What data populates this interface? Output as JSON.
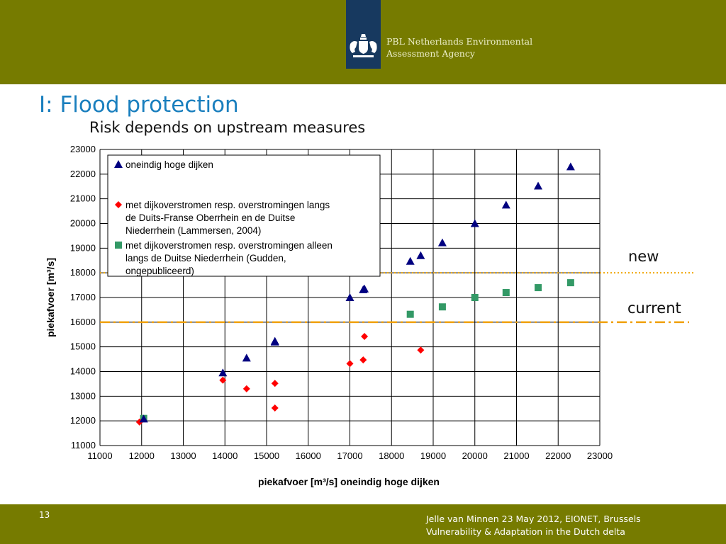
{
  "header": {
    "org_line1": "PBL Netherlands Environmental",
    "org_line2": "Assessment Agency",
    "logo": "dutch-royal-coat-of-arms"
  },
  "slide": {
    "title": "I: Flood protection",
    "subtitle": "Risk depends on upstream measures"
  },
  "footer": {
    "page_number": "13",
    "line1": "Jelle van Minnen 23 May 2012, EIONET, Brussels",
    "line2": "Vulnerability & Adaptation in the Dutch delta"
  },
  "annotations": {
    "new_label": "new",
    "current_label": "current"
  },
  "colors": {
    "band": "#767b00",
    "title": "#1a7fbe",
    "triangle": "#000080",
    "diamond": "#ff0000",
    "square": "#339966",
    "new_line": "#f0a500",
    "current_line": "#f0a000"
  },
  "chart_data": {
    "type": "scatter",
    "xlabel": "piekafvoer [m³/s] oneindig hoge dijken",
    "ylabel": "piekafvoer [m³/s]",
    "xlim": [
      11000,
      23000
    ],
    "ylim": [
      11000,
      23000
    ],
    "xticks": [
      11000,
      12000,
      13000,
      14000,
      15000,
      16000,
      17000,
      18000,
      19000,
      20000,
      21000,
      22000,
      23000
    ],
    "yticks": [
      11000,
      12000,
      13000,
      14000,
      15000,
      16000,
      17000,
      18000,
      19000,
      20000,
      21000,
      22000,
      23000
    ],
    "grid": true,
    "legend_position": "top-left",
    "series": [
      {
        "name": "oneindig hoge dijken",
        "marker": "triangle",
        "points": [
          [
            12050,
            12080
          ],
          [
            13950,
            13950
          ],
          [
            14520,
            14550
          ],
          [
            15200,
            15200
          ],
          [
            15200,
            15230
          ],
          [
            17000,
            17000
          ],
          [
            17320,
            17320
          ],
          [
            17350,
            17350
          ],
          [
            18450,
            18470
          ],
          [
            18700,
            18700
          ],
          [
            19220,
            19220
          ],
          [
            20000,
            20000
          ],
          [
            20750,
            20750
          ],
          [
            21520,
            21520
          ],
          [
            22300,
            22300
          ]
        ]
      },
      {
        "name": "met dijkoverstromen resp. overstromingen langs de Duits-Franse Oberrhein en de Duitse Niederrhein (Lammersen, 2004)",
        "marker": "diamond",
        "points": [
          [
            11950,
            11950
          ],
          [
            13950,
            13650
          ],
          [
            14520,
            13300
          ],
          [
            15200,
            13520
          ],
          [
            15200,
            12520
          ],
          [
            17000,
            14320
          ],
          [
            17320,
            14470
          ],
          [
            17350,
            15420
          ],
          [
            18700,
            14870
          ]
        ]
      },
      {
        "name": "met dijkoverstromen resp. overstromingen alleen langs de Duitse Niederrhein (Gudden, ongepubliceerd)",
        "marker": "square",
        "points": [
          [
            12050,
            12100
          ],
          [
            18450,
            16320
          ],
          [
            19220,
            16620
          ],
          [
            20000,
            17000
          ],
          [
            20750,
            17200
          ],
          [
            21520,
            17400
          ],
          [
            22300,
            17600
          ]
        ]
      }
    ],
    "reference_lines": [
      {
        "label": "new",
        "y": 18000,
        "style": "dotted"
      },
      {
        "label": "current",
        "y": 16000,
        "style": "dash-dot"
      }
    ]
  }
}
